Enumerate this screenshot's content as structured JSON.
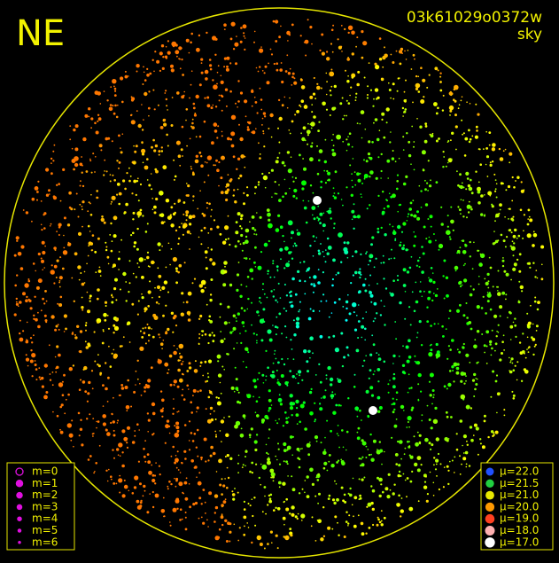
{
  "header": {
    "direction": "NE",
    "frame_id": "03k61029o0372w",
    "kind": "sky"
  },
  "magnitude_legend": [
    "m=0",
    "m=1",
    "m=2",
    "m=3",
    "m=4",
    "m=5",
    "m=6"
  ],
  "brightness_legend": [
    "μ=22.0",
    "μ=21.5",
    "μ=21.0",
    "μ=20.0",
    "μ=19.0",
    "μ=18.0",
    "μ=17.0"
  ]
}
